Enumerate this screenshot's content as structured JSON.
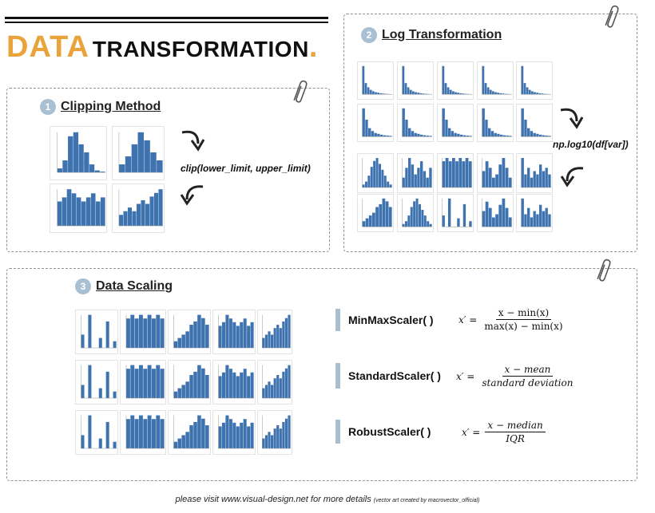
{
  "header": {
    "title_word1": "DATA",
    "title_word2": "TRANSFORMATION",
    "title_dot": ".",
    "accent_color": "#E8A33B"
  },
  "sections": {
    "clipping": {
      "number": "1",
      "title": "Clipping Method",
      "code": "clip(lower_limit, upper_limit)"
    },
    "log": {
      "number": "2",
      "title": "Log Transformation",
      "code": "np.log10(df[var])"
    },
    "scaling": {
      "number": "3",
      "title": "Data Scaling",
      "scalers": [
        {
          "name": "MinMaxScaler( )",
          "lhs": "x′ =",
          "numerator": "x − min(x)",
          "denominator": "max(x) − min(x)"
        },
        {
          "name": "StandardScaler( )",
          "lhs": "x′ =",
          "numerator": "x − mean",
          "denominator": "standard deviation"
        },
        {
          "name": "RobustScaler( )",
          "lhs": "x′ =",
          "numerator": "x − median",
          "denominator": "IQR"
        }
      ]
    }
  },
  "footer": {
    "main": "please visit www.visual-design.net for more details",
    "credit": "(vector art created by macrovector_official)"
  },
  "icons": [
    "paperclip-icon",
    "curved-arrow-icon"
  ],
  "colors": {
    "bars": "#3E73B0",
    "panel_border": "#9b8e83",
    "badge": "#a9c0d3"
  }
}
